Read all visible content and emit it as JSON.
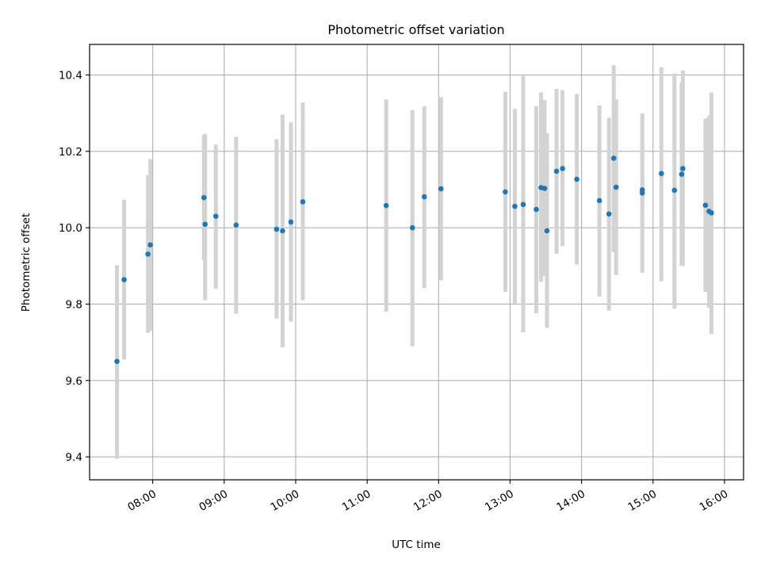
{
  "chart_data": {
    "type": "scatter",
    "title": "Photometric offset variation",
    "xlabel": "UTC time",
    "ylabel": "Photometric offset",
    "x_tick_labels": [
      "08:00",
      "09:00",
      "10:00",
      "11:00",
      "12:00",
      "13:00",
      "14:00",
      "15:00",
      "16:00"
    ],
    "y_ticks": [
      9.4,
      9.6,
      9.8,
      10.0,
      10.2,
      10.4
    ],
    "y_tick_labels": [
      "9.4",
      "9.6",
      "9.8",
      "10.0",
      "10.2",
      "10.4"
    ],
    "xlim": [
      "07:07",
      "16:16"
    ],
    "ylim": [
      9.34,
      10.48
    ],
    "grid": true,
    "colors": {
      "points": "#1f77b4",
      "error_bars": "#d3d3d3",
      "grid": "#b0b0b0"
    },
    "points": [
      {
        "x": "07:30",
        "y": 9.65,
        "ylow": 9.395,
        "yhigh": 9.902
      },
      {
        "x": "07:36",
        "y": 9.864,
        "ylow": 9.655,
        "yhigh": 10.073
      },
      {
        "x": "07:56",
        "y": 9.931,
        "ylow": 9.725,
        "yhigh": 10.138
      },
      {
        "x": "07:58",
        "y": 9.955,
        "ylow": 9.73,
        "yhigh": 10.18
      },
      {
        "x": "08:43",
        "y": 10.079,
        "ylow": 9.915,
        "yhigh": 10.243
      },
      {
        "x": "08:44",
        "y": 10.009,
        "ylow": 9.81,
        "yhigh": 10.246
      },
      {
        "x": "08:53",
        "y": 10.03,
        "ylow": 9.84,
        "yhigh": 10.218
      },
      {
        "x": "09:10",
        "y": 10.007,
        "ylow": 9.775,
        "yhigh": 10.238
      },
      {
        "x": "09:44",
        "y": 9.996,
        "ylow": 9.762,
        "yhigh": 10.232
      },
      {
        "x": "09:49",
        "y": 9.992,
        "ylow": 9.687,
        "yhigh": 10.296
      },
      {
        "x": "09:56",
        "y": 10.015,
        "ylow": 9.754,
        "yhigh": 10.276
      },
      {
        "x": "10:06",
        "y": 10.068,
        "ylow": 9.81,
        "yhigh": 10.328
      },
      {
        "x": "11:16",
        "y": 10.058,
        "ylow": 9.78,
        "yhigh": 10.336
      },
      {
        "x": "11:38",
        "y": 10.0,
        "ylow": 9.69,
        "yhigh": 10.308
      },
      {
        "x": "11:48",
        "y": 10.081,
        "ylow": 9.842,
        "yhigh": 10.318
      },
      {
        "x": "12:02",
        "y": 10.102,
        "ylow": 9.862,
        "yhigh": 10.342
      },
      {
        "x": "12:56",
        "y": 10.094,
        "ylow": 9.832,
        "yhigh": 10.356
      },
      {
        "x": "13:04",
        "y": 10.056,
        "ylow": 9.802,
        "yhigh": 10.311
      },
      {
        "x": "13:11",
        "y": 10.061,
        "ylow": 9.726,
        "yhigh": 10.398
      },
      {
        "x": "13:22",
        "y": 10.048,
        "ylow": 9.776,
        "yhigh": 10.318
      },
      {
        "x": "13:26",
        "y": 10.105,
        "ylow": 9.858,
        "yhigh": 10.354
      },
      {
        "x": "13:29",
        "y": 10.103,
        "ylow": 9.874,
        "yhigh": 10.334
      },
      {
        "x": "13:31",
        "y": 9.992,
        "ylow": 9.738,
        "yhigh": 10.247
      },
      {
        "x": "13:39",
        "y": 10.148,
        "ylow": 9.932,
        "yhigh": 10.364
      },
      {
        "x": "13:44",
        "y": 10.155,
        "ylow": 9.952,
        "yhigh": 10.36
      },
      {
        "x": "13:56",
        "y": 10.127,
        "ylow": 9.904,
        "yhigh": 10.35
      },
      {
        "x": "14:15",
        "y": 10.071,
        "ylow": 9.82,
        "yhigh": 10.32
      },
      {
        "x": "14:23",
        "y": 10.036,
        "ylow": 9.783,
        "yhigh": 10.288
      },
      {
        "x": "14:27",
        "y": 10.182,
        "ylow": 9.936,
        "yhigh": 10.426
      },
      {
        "x": "14:29",
        "y": 10.106,
        "ylow": 9.876,
        "yhigh": 10.336
      },
      {
        "x": "14:51",
        "y": 10.099,
        "ylow": 9.882,
        "yhigh": 10.299
      },
      {
        "x": "14:51",
        "y": 10.091,
        "ylow": 9.882,
        "yhigh": 10.299
      },
      {
        "x": "15:07",
        "y": 10.142,
        "ylow": 9.86,
        "yhigh": 10.42
      },
      {
        "x": "15:18",
        "y": 10.098,
        "ylow": 9.788,
        "yhigh": 10.404
      },
      {
        "x": "15:24",
        "y": 10.14,
        "ylow": 9.9,
        "yhigh": 10.38
      },
      {
        "x": "15:25",
        "y": 10.155,
        "ylow": 9.9,
        "yhigh": 10.412
      },
      {
        "x": "15:44",
        "y": 10.059,
        "ylow": 9.832,
        "yhigh": 10.286
      },
      {
        "x": "15:47",
        "y": 10.043,
        "ylow": 9.79,
        "yhigh": 10.294
      },
      {
        "x": "15:49",
        "y": 10.039,
        "ylow": 9.722,
        "yhigh": 10.354
      }
    ]
  }
}
